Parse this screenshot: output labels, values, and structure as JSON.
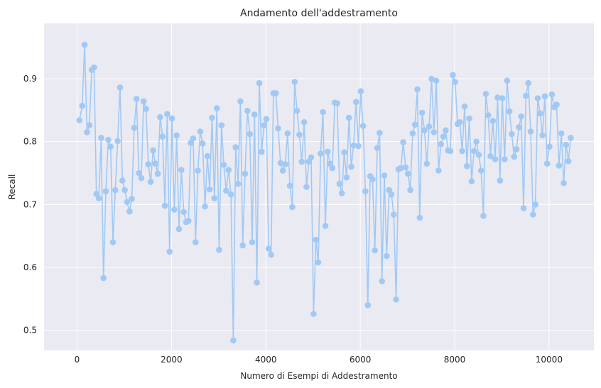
{
  "chart_data": {
    "type": "line",
    "title": "Andamento dell'addestramento",
    "xlabel": "Numero di Esempi di Addestramento",
    "ylabel": "Recall",
    "xlim": [
      -700,
      10950
    ],
    "ylim": [
      0.468,
      0.988
    ],
    "xticks": [
      0,
      2000,
      4000,
      6000,
      8000,
      10000
    ],
    "yticks": [
      0.5,
      0.6,
      0.7,
      0.8,
      0.9
    ],
    "xtick_labels": [
      "0",
      "2000",
      "4000",
      "6000",
      "8000",
      "10000"
    ],
    "ytick_labels": [
      "0.5",
      "0.6",
      "0.7",
      "0.8",
      "0.9"
    ],
    "grid": true,
    "marker": "circle",
    "line_color": "#a1c9f4",
    "background": "#eaeaf2",
    "series": [
      {
        "x": [
          50,
          110,
          160,
          210,
          260,
          310,
          360,
          410,
          460,
          510,
          560,
          610,
          660,
          710,
          760,
          810,
          860,
          910,
          960,
          1010,
          1060,
          1110,
          1160,
          1210,
          1260,
          1310,
          1360,
          1410,
          1460,
          1510,
          1560,
          1610,
          1660,
          1710,
          1760,
          1810,
          1860,
          1910,
          1960,
          2010,
          2060,
          2110,
          2160,
          2210,
          2260,
          2310,
          2360,
          2410,
          2460,
          2510,
          2560,
          2610,
          2660,
          2710,
          2760,
          2810,
          2860,
          2910,
          2960,
          3010,
          3060,
          3110,
          3160,
          3210,
          3260,
          3310,
          3360,
          3410,
          3460,
          3510,
          3560,
          3610,
          3660,
          3710,
          3760,
          3810,
          3860,
          3910,
          3960,
          4010,
          4060,
          4110,
          4160,
          4210,
          4260,
          4310,
          4360,
          4410,
          4460,
          4510,
          4560,
          4610,
          4660,
          4710,
          4760,
          4810,
          4860,
          4910,
          4960,
          5010,
          5060,
          5110,
          5160,
          5210,
          5260,
          5310,
          5360,
          5410,
          5460,
          5510,
          5560,
          5610,
          5660,
          5710,
          5760,
          5810,
          5860,
          5910,
          5960,
          6010,
          6060,
          6110,
          6160,
          6210,
          6260,
          6310,
          6360,
          6410,
          6460,
          6510,
          6560,
          6610,
          6660,
          6710,
          6760,
          6810,
          6860,
          6910,
          6960,
          7010,
          7060,
          7110,
          7160,
          7210,
          7260,
          7310,
          7360,
          7410,
          7460,
          7510,
          7560,
          7610,
          7660,
          7710,
          7760,
          7810,
          7860,
          7910,
          7960,
          8010,
          8060,
          8110,
          8160,
          8210,
          8260,
          8310,
          8360,
          8410,
          8460,
          8510,
          8560,
          8610,
          8660,
          8710,
          8760,
          8810,
          8860,
          8910,
          8960,
          9010,
          9060,
          9110,
          9160,
          9210,
          9260,
          9310,
          9360,
          9410,
          9460,
          9510,
          9560,
          9610,
          9660,
          9710,
          9760,
          9810,
          9860,
          9910,
          9960,
          10010,
          10060,
          10110,
          10160,
          10210,
          10260,
          10310,
          10360,
          10410,
          10460
        ],
        "y": [
          0.834,
          0.857,
          0.954,
          0.815,
          0.826,
          0.914,
          0.918,
          0.717,
          0.71,
          0.806,
          0.583,
          0.721,
          0.803,
          0.792,
          0.64,
          0.723,
          0.801,
          0.886,
          0.738,
          0.723,
          0.704,
          0.689,
          0.709,
          0.822,
          0.868,
          0.75,
          0.742,
          0.864,
          0.852,
          0.764,
          0.736,
          0.786,
          0.765,
          0.749,
          0.839,
          0.808,
          0.698,
          0.844,
          0.625,
          0.837,
          0.692,
          0.81,
          0.661,
          0.755,
          0.688,
          0.672,
          0.674,
          0.798,
          0.805,
          0.64,
          0.754,
          0.816,
          0.797,
          0.697,
          0.777,
          0.724,
          0.838,
          0.71,
          0.853,
          0.628,
          0.826,
          0.763,
          0.722,
          0.755,
          0.716,
          0.484,
          0.791,
          0.733,
          0.864,
          0.635,
          0.749,
          0.849,
          0.812,
          0.64,
          0.843,
          0.576,
          0.893,
          0.784,
          0.826,
          0.836,
          0.63,
          0.62,
          0.877,
          0.877,
          0.821,
          0.766,
          0.754,
          0.764,
          0.813,
          0.73,
          0.696,
          0.895,
          0.849,
          0.811,
          0.768,
          0.831,
          0.728,
          0.768,
          0.775,
          0.526,
          0.644,
          0.608,
          0.781,
          0.847,
          0.666,
          0.784,
          0.765,
          0.758,
          0.862,
          0.861,
          0.733,
          0.718,
          0.783,
          0.743,
          0.838,
          0.76,
          0.794,
          0.863,
          0.793,
          0.88,
          0.825,
          0.721,
          0.54,
          0.745,
          0.74,
          0.627,
          0.79,
          0.814,
          0.578,
          0.746,
          0.618,
          0.723,
          0.716,
          0.684,
          0.549,
          0.756,
          0.758,
          0.799,
          0.759,
          0.749,
          0.723,
          0.813,
          0.827,
          0.883,
          0.679,
          0.846,
          0.818,
          0.765,
          0.824,
          0.9,
          0.815,
          0.897,
          0.754,
          0.796,
          0.808,
          0.818,
          0.786,
          0.785,
          0.906,
          0.895,
          0.828,
          0.831,
          0.785,
          0.856,
          0.761,
          0.837,
          0.737,
          0.785,
          0.8,
          0.779,
          0.754,
          0.682,
          0.876,
          0.842,
          0.777,
          0.833,
          0.772,
          0.87,
          0.738,
          0.869,
          0.772,
          0.897,
          0.848,
          0.812,
          0.776,
          0.788,
          0.823,
          0.84,
          0.694,
          0.873,
          0.893,
          0.816,
          0.684,
          0.7,
          0.869,
          0.845,
          0.81,
          0.872,
          0.765,
          0.792,
          0.875,
          0.855,
          0.859,
          0.762,
          0.813,
          0.734,
          0.795,
          0.769,
          0.806
        ]
      }
    ]
  }
}
